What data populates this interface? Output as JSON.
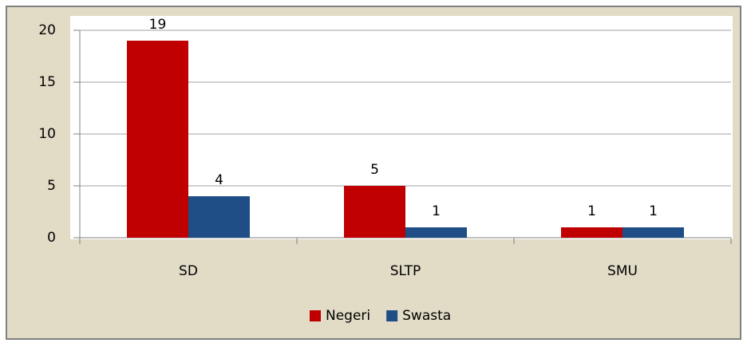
{
  "chart_data": {
    "type": "bar",
    "categories": [
      "SD",
      "SLTP",
      "SMU"
    ],
    "series": [
      {
        "name": "Negeri",
        "color": "#c00000",
        "values": [
          19,
          5,
          1
        ]
      },
      {
        "name": "Swasta",
        "color": "#1f4e87",
        "values": [
          4,
          1,
          1
        ]
      }
    ],
    "ylim": [
      0,
      20
    ],
    "yticks": [
      0,
      5,
      10,
      15,
      20
    ],
    "grid": true,
    "legend": "bottom"
  }
}
